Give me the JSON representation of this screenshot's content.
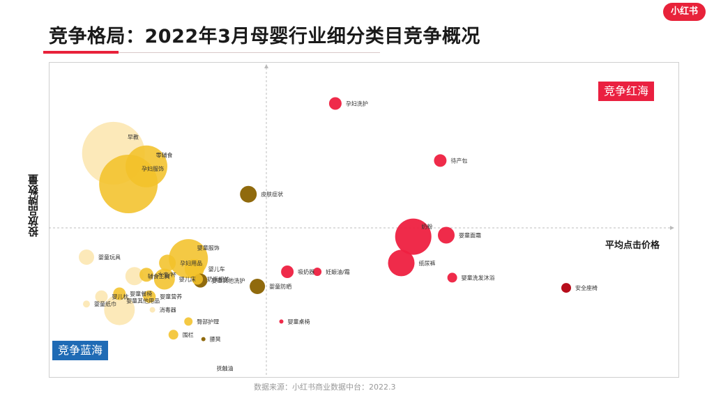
{
  "title": "竞争格局：2022年3月母婴行业细分类目竞争概况",
  "brand": "小红书",
  "source": "数据来源：小红书商业数据中台：2022.3",
  "chart_data": {
    "type": "scatter",
    "xlabel": "平均点击价格",
    "ylabel": "投放品牌数量",
    "quadrant_labels": {
      "top_right": "竞争红海",
      "bottom_left": "竞争蓝海"
    },
    "colors": {
      "red": "#ee2040",
      "dark_red": "#b3000f",
      "gold": "#f2c22a",
      "light": "#fbe3a8",
      "olive": "#8a6200"
    },
    "points": [
      {
        "name": "孕妇洗护",
        "x": 0.23,
        "y": 0.85,
        "size": 9,
        "color": "red"
      },
      {
        "name": "待产包",
        "x": 0.58,
        "y": 0.46,
        "size": 9,
        "color": "red"
      },
      {
        "name": "奶粉",
        "x": 0.49,
        "y": -0.06,
        "size": 26,
        "color": "red"
      },
      {
        "name": "婴童面霜",
        "x": 0.6,
        "y": -0.05,
        "size": 12,
        "color": "red"
      },
      {
        "name": "纸尿裤",
        "x": 0.45,
        "y": -0.24,
        "size": 19,
        "color": "red"
      },
      {
        "name": "吸奶器",
        "x": 0.07,
        "y": -0.3,
        "size": 9,
        "color": "red"
      },
      {
        "name": "妊娠油/霜",
        "x": 0.17,
        "y": -0.3,
        "size": 6,
        "color": "red"
      },
      {
        "name": "婴童洗发沐浴",
        "x": 0.62,
        "y": -0.34,
        "size": 7,
        "color": "red"
      },
      {
        "name": "安全座椅",
        "x": 1.0,
        "y": -0.41,
        "size": 7,
        "color": "dark_red"
      },
      {
        "name": "婴童桌椅",
        "x": 0.05,
        "y": -0.64,
        "size": 3,
        "color": "red"
      },
      {
        "name": "皮肤症状",
        "x": -0.06,
        "y": 0.23,
        "size": 12,
        "color": "olive"
      },
      {
        "name": "婴童防晒",
        "x": -0.03,
        "y": -0.4,
        "size": 11,
        "color": "olive"
      },
      {
        "name": "婴童其他洗护",
        "x": -0.22,
        "y": -0.36,
        "size": 10,
        "color": "olive"
      },
      {
        "name": "孕妇服饰",
        "x": -0.46,
        "y": 0.3,
        "size": 42,
        "color": "gold"
      },
      {
        "name": "零辅食",
        "x": -0.4,
        "y": 0.42,
        "size": 30,
        "color": "gold"
      },
      {
        "name": "早教",
        "x": -0.51,
        "y": 0.51,
        "size": 45,
        "color": "light"
      },
      {
        "name": "婴童服饰",
        "x": -0.26,
        "y": -0.21,
        "size": 28,
        "color": "gold"
      },
      {
        "name": "孕妇用品",
        "x": -0.33,
        "y": -0.24,
        "size": 12,
        "color": "gold"
      },
      {
        "name": "婴儿车",
        "x": -0.24,
        "y": -0.28,
        "size": 14,
        "color": "gold"
      },
      {
        "name": "奶瓶相关",
        "x": -0.23,
        "y": -0.35,
        "size": 8,
        "color": "gold"
      },
      {
        "name": "婴儿床",
        "x": -0.34,
        "y": -0.35,
        "size": 15,
        "color": "gold"
      },
      {
        "name": "水壶/杯",
        "x": -0.4,
        "y": -0.32,
        "size": 10,
        "color": "gold"
      },
      {
        "name": "辅食工具",
        "x": -0.44,
        "y": -0.33,
        "size": 13,
        "color": "light"
      },
      {
        "name": "婴童玩具",
        "x": -0.6,
        "y": -0.2,
        "size": 11,
        "color": "light"
      },
      {
        "name": "婴儿枕",
        "x": -0.55,
        "y": -0.47,
        "size": 9,
        "color": "light"
      },
      {
        "name": "婴童纸巾",
        "x": -0.6,
        "y": -0.52,
        "size": 5,
        "color": "light"
      },
      {
        "name": "婴童餐椅",
        "x": -0.49,
        "y": -0.45,
        "size": 9,
        "color": "gold"
      },
      {
        "name": "婴童营养",
        "x": -0.39,
        "y": -0.47,
        "size": 9,
        "color": "gold"
      },
      {
        "name": "消毒器",
        "x": -0.38,
        "y": -0.56,
        "size": 4,
        "color": "light"
      },
      {
        "name": "婴童其他用品",
        "x": -0.49,
        "y": -0.56,
        "size": 22,
        "color": "light"
      },
      {
        "name": "臀部护理",
        "x": -0.26,
        "y": -0.64,
        "size": 6,
        "color": "gold"
      },
      {
        "name": "围栏",
        "x": -0.31,
        "y": -0.73,
        "size": 7,
        "color": "gold"
      },
      {
        "name": "腰凳",
        "x": -0.21,
        "y": -0.76,
        "size": 3,
        "color": "olive"
      },
      {
        "name": "抚触油",
        "x": -0.18,
        "y": -0.96,
        "size": 0,
        "color": "light"
      }
    ]
  }
}
